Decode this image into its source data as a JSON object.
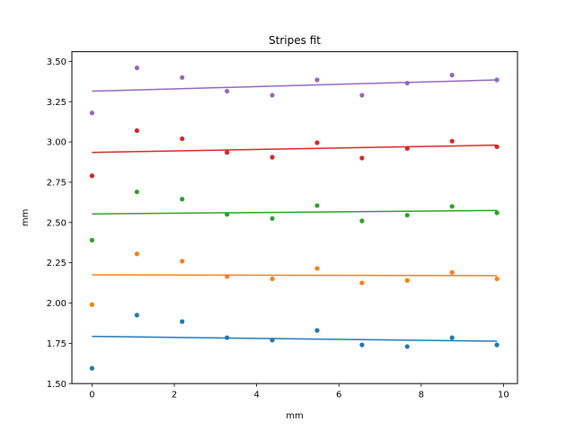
{
  "chart_data": {
    "type": "scatter",
    "title": "Stripes fit",
    "xlabel": "mm",
    "ylabel": "mm",
    "xlim": [
      -0.49,
      10.34
    ],
    "ylim": [
      1.5,
      3.56
    ],
    "xticks": [
      0,
      2,
      4,
      6,
      8,
      10
    ],
    "xtick_labels": [
      "0",
      "2",
      "4",
      "6",
      "8",
      "10"
    ],
    "yticks": [
      1.5,
      1.75,
      2.0,
      2.25,
      2.5,
      2.75,
      3.0,
      3.25,
      3.5
    ],
    "ytick_labels": [
      "1.50",
      "1.75",
      "2.00",
      "2.25",
      "2.50",
      "2.75",
      "3.00",
      "3.25",
      "3.50"
    ],
    "grid": false,
    "x": [
      0.0,
      1.09,
      2.19,
      3.28,
      4.38,
      5.47,
      6.56,
      7.66,
      8.75,
      9.84
    ],
    "series": [
      {
        "color": "#1f77b4",
        "points": [
          1.595,
          1.925,
          1.885,
          1.785,
          1.77,
          1.83,
          1.74,
          1.73,
          1.785,
          1.74
        ],
        "fit": [
          1.793,
          1.763
        ]
      },
      {
        "color": "#ff7f0e",
        "points": [
          1.99,
          2.305,
          2.26,
          2.165,
          2.15,
          2.215,
          2.125,
          2.14,
          2.19,
          2.15
        ],
        "fit": [
          2.175,
          2.17
        ]
      },
      {
        "color": "#2ca02c",
        "points": [
          2.39,
          2.69,
          2.645,
          2.55,
          2.525,
          2.605,
          2.51,
          2.545,
          2.6,
          2.56
        ],
        "fit": [
          2.553,
          2.575
        ]
      },
      {
        "color": "#d62728",
        "points": [
          2.79,
          3.07,
          3.02,
          2.935,
          2.905,
          2.995,
          2.9,
          2.96,
          3.005,
          2.97
        ],
        "fit": [
          2.935,
          2.98
        ]
      },
      {
        "color": "#9467bd",
        "points": [
          3.18,
          3.46,
          3.4,
          3.315,
          3.29,
          3.385,
          3.29,
          3.365,
          3.415,
          3.385
        ],
        "fit": [
          3.315,
          3.385
        ]
      }
    ]
  }
}
